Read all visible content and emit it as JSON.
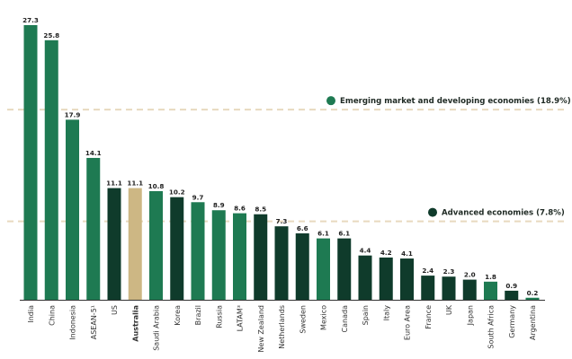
{
  "chart_data": {
    "type": "bar",
    "title": "",
    "xlabel": "",
    "ylabel": "",
    "ylim": [
      0,
      27.3
    ],
    "grid": false,
    "categories": [
      "India",
      "China",
      "Indonesia",
      "ASEAN-5¹",
      "US",
      "Australia",
      "Saudi Arabia",
      "Korea",
      "Brazil",
      "Russia",
      "LATAM³",
      "New Zealand",
      "Netherlands",
      "Sweden",
      "Mexico",
      "Canada",
      "Spain",
      "Italy",
      "Euro Area",
      "France",
      "UK",
      "Japan",
      "South Africa",
      "Germany",
      "Argentina"
    ],
    "values": [
      27.3,
      25.8,
      17.9,
      14.1,
      11.1,
      11.1,
      10.8,
      10.2,
      9.7,
      8.9,
      8.6,
      8.5,
      7.3,
      6.6,
      6.1,
      6.1,
      4.4,
      4.2,
      4.1,
      2.4,
      2.3,
      2.0,
      1.8,
      0.9,
      0.2
    ],
    "value_labels": [
      "27.3",
      "25.8",
      "17.9",
      "14.1",
      "11.1",
      "11.1",
      "10.8",
      "10.2",
      "9.7",
      "8.9",
      "8.6",
      "8.5",
      "7.3",
      "6.6",
      "6.1",
      "6.1",
      "4.4",
      "4.2",
      "4.1",
      "2.4",
      "2.3",
      "2.0",
      "1.8",
      "0.9",
      "0.2"
    ],
    "groups": [
      "emerging",
      "emerging",
      "emerging",
      "emerging",
      "advanced",
      "australia",
      "emerging",
      "advanced",
      "emerging",
      "emerging",
      "emerging",
      "advanced",
      "advanced",
      "advanced",
      "emerging",
      "advanced",
      "advanced",
      "advanced",
      "advanced",
      "advanced",
      "advanced",
      "advanced",
      "emerging",
      "advanced",
      "emerging"
    ],
    "bold_categories": [
      "Australia"
    ],
    "colors": {
      "emerging": "#1e7a52",
      "advanced": "#0f3b2b",
      "australia": "#cdb784",
      "reference_line": "#e8d9bf",
      "axis": "#333333"
    },
    "reference_lines": [
      {
        "group": "emerging",
        "value": 18.9,
        "label": "Emerging market and developing economies (18.9%)"
      },
      {
        "group": "advanced",
        "value": 7.8,
        "label": "Advanced economies (7.8%)"
      }
    ]
  }
}
